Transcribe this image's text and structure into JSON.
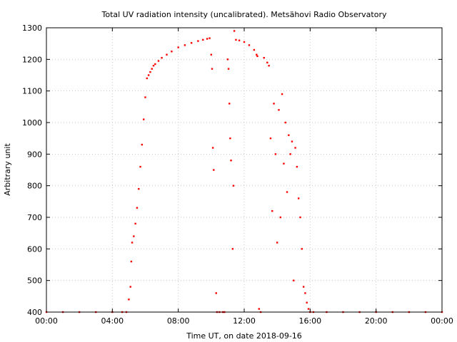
{
  "chart_data": {
    "type": "scatter",
    "title": "Total UV radiation intensity (uncalibrated). Metsähovi Radio Observatory",
    "xlabel": "Time UT, on date 2018-09-16",
    "ylabel": "Arbitrary unit",
    "x_unit": "hours",
    "xlim": [
      0,
      24
    ],
    "ylim": [
      400,
      1300
    ],
    "x_ticks": [
      0,
      4,
      8,
      12,
      16,
      20,
      24
    ],
    "x_tick_labels": [
      "00:00",
      "04:00",
      "08:00",
      "12:00",
      "16:00",
      "20:00",
      "00:00"
    ],
    "y_ticks": [
      400,
      500,
      600,
      700,
      800,
      900,
      1000,
      1100,
      1200,
      1300
    ],
    "grid": true,
    "legend": "none",
    "marker_color": "#ff0000",
    "series": [
      {
        "x": [
          0.0,
          1.0,
          2.0,
          3.0,
          4.0,
          4.6,
          4.85,
          5.0,
          5.1,
          5.15,
          5.2,
          5.3,
          5.4,
          5.5,
          5.6,
          5.7,
          5.8,
          5.9,
          6.0,
          6.1,
          6.2,
          6.3,
          6.4,
          6.5,
          6.6,
          6.8,
          7.0,
          7.3,
          7.6,
          8.0,
          8.4,
          8.8,
          9.2,
          9.5,
          9.75,
          9.9,
          10.0,
          10.05,
          10.1,
          10.15,
          10.3,
          10.35,
          10.5,
          10.7,
          10.8,
          11.0,
          11.05,
          11.1,
          11.15,
          11.2,
          11.3,
          11.35,
          11.4,
          11.5,
          11.7,
          12.0,
          12.3,
          12.6,
          12.75,
          12.8,
          12.9,
          13.0,
          13.2,
          13.4,
          13.5,
          13.6,
          13.7,
          13.8,
          13.9,
          14.0,
          14.1,
          14.2,
          14.3,
          14.4,
          14.5,
          14.6,
          14.7,
          14.8,
          14.9,
          15.0,
          15.1,
          15.2,
          15.3,
          15.4,
          15.5,
          15.6,
          15.7,
          15.8,
          15.9,
          16.0,
          16.2,
          17.0,
          18.0,
          19.0,
          20.0,
          21.0,
          22.0,
          23.0,
          24.0
        ],
        "y": [
          400,
          400,
          400,
          400,
          400,
          400,
          400,
          440,
          480,
          560,
          620,
          640,
          680,
          730,
          790,
          860,
          930,
          1010,
          1080,
          1140,
          1150,
          1160,
          1170,
          1180,
          1185,
          1195,
          1205,
          1215,
          1225,
          1238,
          1245,
          1252,
          1258,
          1262,
          1265,
          1267,
          1215,
          1170,
          920,
          850,
          460,
          400,
          400,
          400,
          400,
          1200,
          1170,
          1060,
          950,
          880,
          600,
          800,
          1290,
          1262,
          1260,
          1255,
          1245,
          1230,
          1215,
          1210,
          410,
          400,
          1205,
          1190,
          1180,
          950,
          720,
          1060,
          900,
          620,
          1040,
          700,
          1090,
          870,
          1000,
          780,
          960,
          900,
          940,
          500,
          920,
          860,
          760,
          700,
          600,
          480,
          460,
          430,
          410,
          400,
          400,
          400,
          400,
          400,
          400,
          400,
          400,
          400,
          400
        ]
      }
    ]
  }
}
